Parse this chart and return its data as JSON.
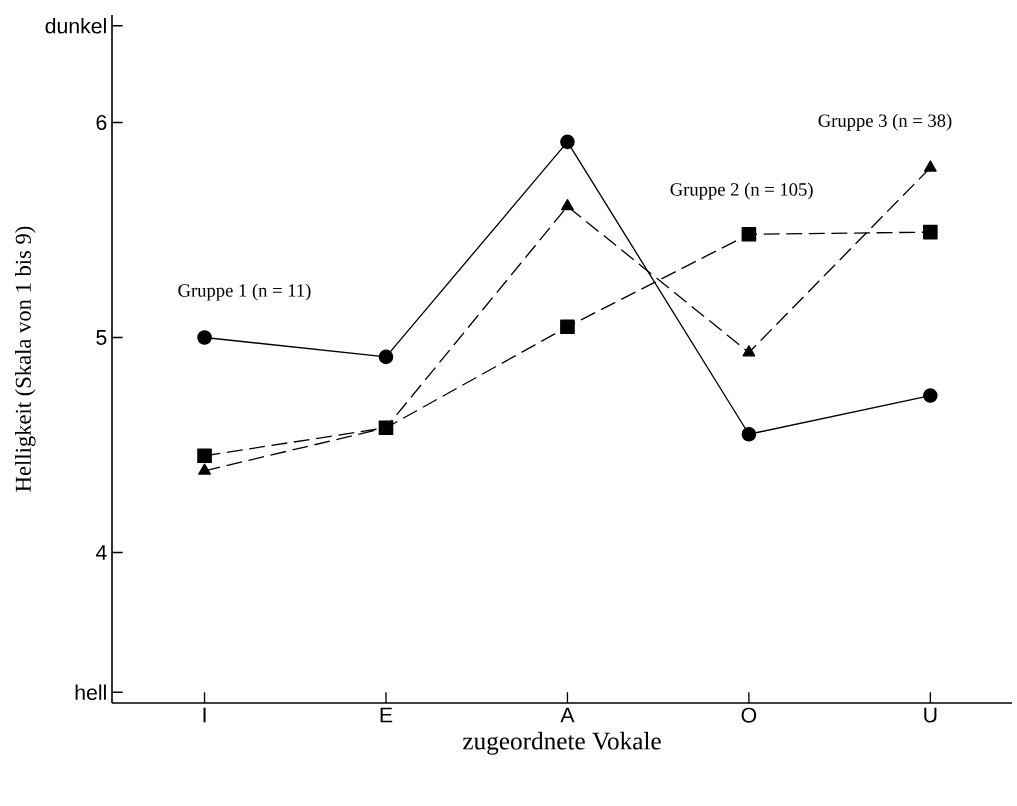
{
  "chart_data": {
    "type": "line",
    "xlabel": "zugeordnete Vokale",
    "ylabel": "Helligkeit (Skala von 1 bis 9)",
    "categories": [
      "I",
      "E",
      "A",
      "O",
      "U"
    ],
    "series": [
      {
        "name": "Gruppe 1 (n = 11)",
        "color": "#000000",
        "marker": "circle",
        "line_style": "solid",
        "values": [
          5.0,
          4.91,
          5.91,
          4.55,
          4.73
        ]
      },
      {
        "name": "Gruppe 2 (n = 105)",
        "color": "#000000",
        "marker": "square",
        "line_style": "dashed",
        "values": [
          4.45,
          4.58,
          5.05,
          5.48,
          5.49
        ]
      },
      {
        "name": "Gruppe 3 (n = 38)",
        "color": "#000000",
        "marker": "triangle",
        "line_style": "dashed",
        "values": [
          4.38,
          4.58,
          5.61,
          4.93,
          5.79
        ]
      }
    ],
    "ylim": [
      3.3,
      6.5
    ],
    "yticks": [
      {
        "value": 3.35,
        "label": "hell"
      },
      4,
      5,
      6,
      {
        "value": 6.45,
        "label": "dunkel"
      }
    ],
    "grid": false,
    "legend": false
  }
}
